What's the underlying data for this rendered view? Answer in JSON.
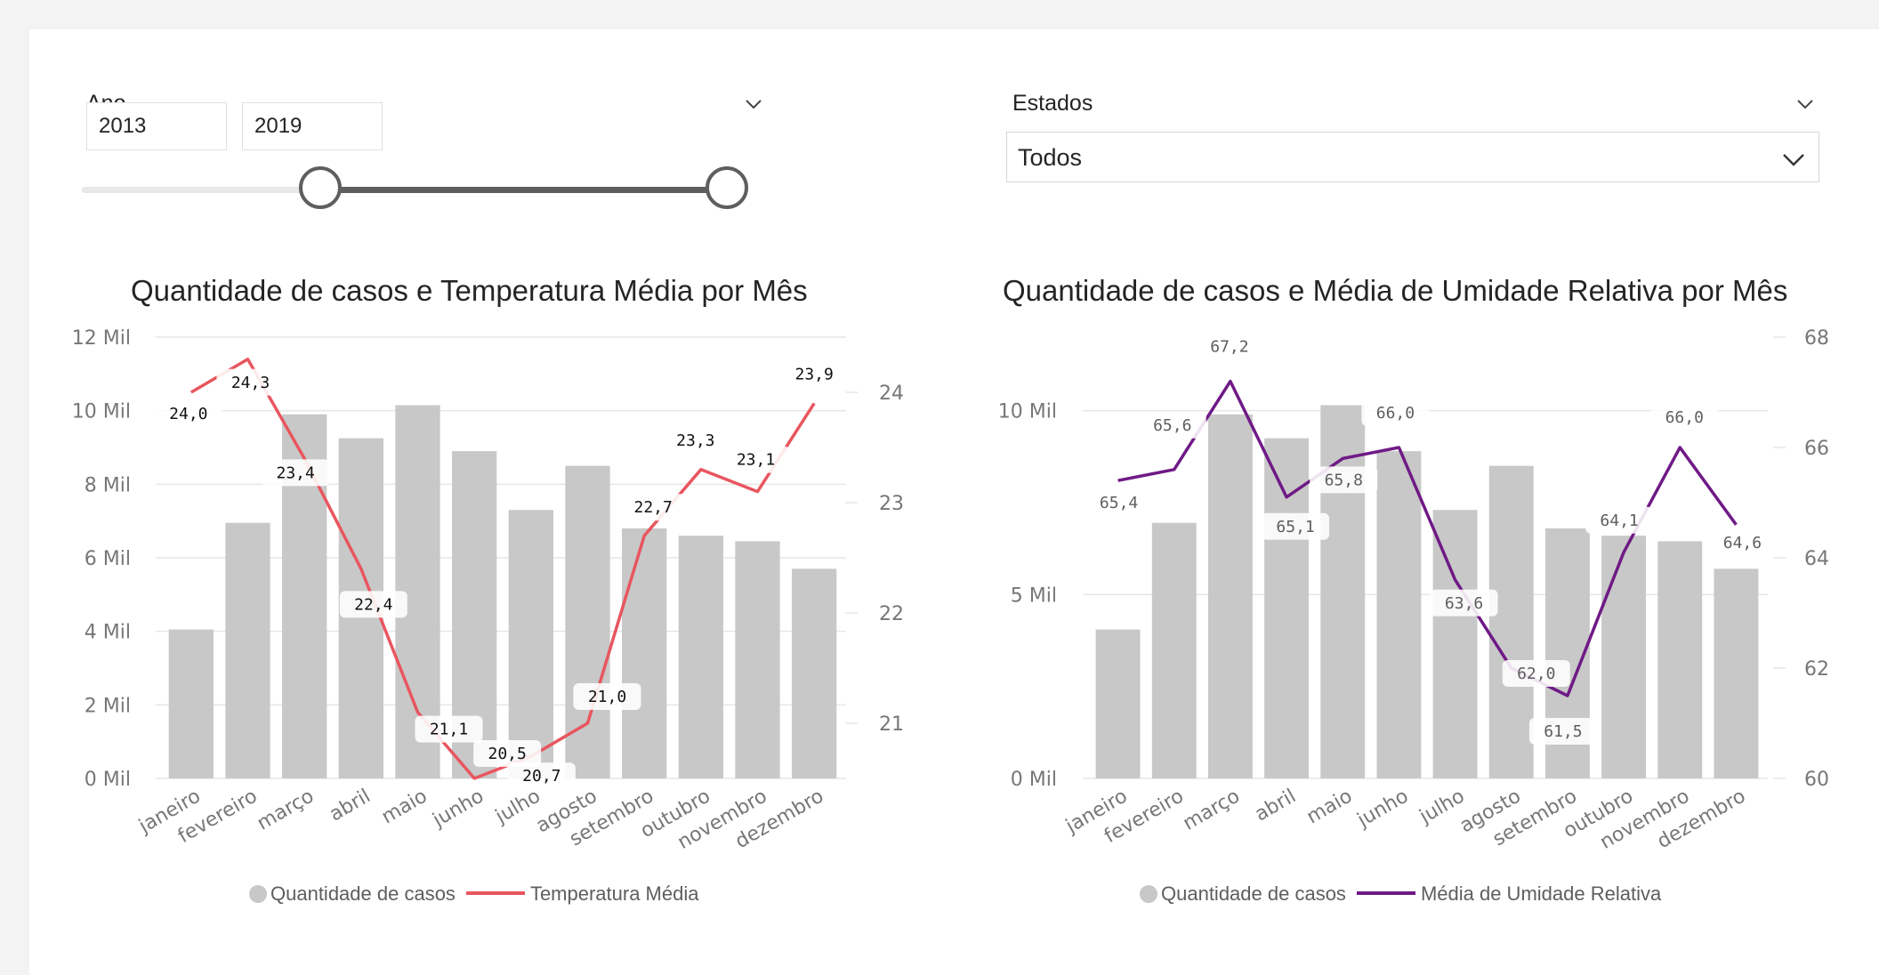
{
  "slicers": {
    "year": {
      "title": "Ano",
      "from": "2013",
      "to": "2019",
      "range_fraction": [
        0.37,
        1.0
      ]
    },
    "states": {
      "title": "Estados",
      "selected": "Todos"
    }
  },
  "charts": {
    "left": {
      "title": "Quantidade de casos e Temperatura Média por Mês",
      "legend": {
        "bar": "Quantidade de casos",
        "line": "Temperatura Média"
      },
      "line_color": "#e8565f"
    },
    "right": {
      "title": "Quantidade de casos e Média de Umidade Relativa por Mês",
      "legend": {
        "bar": "Quantidade de casos",
        "line": "Média de Umidade Relativa"
      },
      "line_color": "#6f1a86"
    }
  },
  "chart_data": [
    {
      "type": "bar",
      "title": "Quantidade de casos e Temperatura Média por Mês",
      "categories": [
        "janeiro",
        "fevereiro",
        "março",
        "abril",
        "maio",
        "junho",
        "julho",
        "agosto",
        "setembro",
        "outubro",
        "novembro",
        "dezembro"
      ],
      "series": [
        {
          "name": "Quantidade de casos",
          "type": "bar",
          "axis": "left",
          "color": "#c8c8c8",
          "values": [
            4050,
            6950,
            9900,
            9250,
            10150,
            8900,
            7300,
            8500,
            6800,
            6600,
            6450,
            5700
          ]
        },
        {
          "name": "Temperatura Média",
          "type": "line",
          "axis": "right",
          "color": "#e8565f",
          "values": [
            24.0,
            24.3,
            23.4,
            22.4,
            21.1,
            20.5,
            20.7,
            21.0,
            22.7,
            23.3,
            23.1,
            23.9
          ],
          "labels": [
            "24,0",
            "24,3",
            "23,4",
            "22,4",
            "21,1",
            "20,5",
            "20,7",
            "21,0",
            "22,7",
            "23,3",
            "23,1",
            "23,9"
          ]
        }
      ],
      "y_left": {
        "range": [
          0,
          12000
        ],
        "ticks": [
          0,
          2000,
          4000,
          6000,
          8000,
          10000,
          12000
        ],
        "tick_labels": [
          "0 Mil",
          "2 Mil",
          "4 Mil",
          "6 Mil",
          "8 Mil",
          "10 Mil",
          "12 Mil"
        ]
      },
      "y_right": {
        "range": [
          20.5,
          24.5
        ],
        "ticks": [
          21,
          22,
          23,
          24
        ],
        "tick_labels": [
          "21",
          "22",
          "23",
          "24"
        ]
      },
      "grid": true,
      "legend_position": "bottom"
    },
    {
      "type": "bar",
      "title": "Quantidade de casos e Média de Umidade Relativa por Mês",
      "categories": [
        "janeiro",
        "fevereiro",
        "março",
        "abril",
        "maio",
        "junho",
        "julho",
        "agosto",
        "setembro",
        "outubro",
        "novembro",
        "dezembro"
      ],
      "series": [
        {
          "name": "Quantidade de casos",
          "type": "bar",
          "axis": "left",
          "color": "#c8c8c8",
          "values": [
            4050,
            6950,
            9900,
            9250,
            10150,
            8900,
            7300,
            8500,
            6800,
            6600,
            6450,
            5700
          ]
        },
        {
          "name": "Média de Umidade Relativa",
          "type": "line",
          "axis": "right",
          "color": "#6f1a86",
          "values": [
            65.4,
            65.6,
            67.2,
            65.1,
            65.8,
            66.0,
            63.6,
            62.0,
            61.5,
            64.1,
            66.0,
            64.6
          ],
          "labels": [
            "65,4",
            "65,6",
            "67,2",
            "65,1",
            "65,8",
            "66,0",
            "63,6",
            "62,0",
            "61,5",
            "64,1",
            "66,0",
            "64,6"
          ]
        }
      ],
      "y_left": {
        "range": [
          0,
          12000
        ],
        "ticks": [
          0,
          5000,
          10000
        ],
        "tick_labels": [
          "0 Mil",
          "5 Mil",
          "10 Mil"
        ]
      },
      "y_right": {
        "range": [
          60,
          68
        ],
        "ticks": [
          60,
          62,
          64,
          66,
          68
        ],
        "tick_labels": [
          "60",
          "62",
          "64",
          "66",
          "68"
        ]
      },
      "grid": true,
      "legend_position": "bottom"
    }
  ]
}
